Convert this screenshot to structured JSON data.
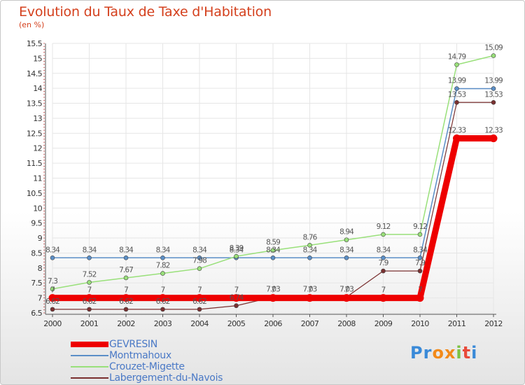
{
  "page": {
    "title": "Evolution du Taux de Taxe d'Habitation",
    "subtitle": "(en %)"
  },
  "chart_data": {
    "type": "line",
    "title": "Evolution du Taux de Taxe d'Habitation",
    "subtitle": "(en %)",
    "xlabel": "",
    "ylabel": "",
    "categories": [
      "2000",
      "2001",
      "2002",
      "2003",
      "2004",
      "2005",
      "2006",
      "2007",
      "2008",
      "2009",
      "2010",
      "2011",
      "2012"
    ],
    "ylim": [
      6.5,
      15.5
    ],
    "yticks": [
      "6.5",
      "7",
      "7.5",
      "8",
      "8.5",
      "9",
      "9.5",
      "10",
      "10.5",
      "11",
      "11.5",
      "12",
      "12.5",
      "13",
      "13.5",
      "14",
      "14.5",
      "15",
      "15.5"
    ],
    "grid": true,
    "legend_position": "bottom-left",
    "series": [
      {
        "name": "GEVRESIN",
        "color": "#ee0000",
        "values": [
          7,
          7,
          7,
          7,
          7,
          7,
          7,
          7,
          7,
          7,
          7,
          12.33,
          12.33
        ],
        "labels": [
          "7",
          "7",
          "7",
          "7",
          "7",
          "7",
          "7",
          "7",
          "7",
          "7",
          "7",
          "12.33",
          "12.33"
        ]
      },
      {
        "name": "Montmahoux",
        "color": "#5b8fc7",
        "values": [
          8.34,
          8.34,
          8.34,
          8.34,
          8.34,
          8.34,
          8.34,
          8.34,
          8.34,
          8.34,
          8.34,
          13.99,
          13.99
        ],
        "labels": [
          "8.34",
          "8.34",
          "8.34",
          "8.34",
          "8.34",
          "8.34",
          "8.34",
          "8.34",
          "8.34",
          "8.34",
          "8.34",
          "13.99",
          "13.99"
        ]
      },
      {
        "name": "Crouzet-Migette",
        "color": "#99e07a",
        "values": [
          7.3,
          7.52,
          7.67,
          7.82,
          7.98,
          8.39,
          8.59,
          8.76,
          8.94,
          9.12,
          9.12,
          14.79,
          15.09
        ],
        "labels": [
          "7.3",
          "7.52",
          "7.67",
          "7.82",
          "7.98",
          "8.39",
          "8.59",
          "8.76",
          "8.94",
          "9.12",
          "9.12",
          "14.79",
          "15.09"
        ]
      },
      {
        "name": "Labergement-du-Navois",
        "color": "#7a3030",
        "values": [
          6.62,
          6.62,
          6.62,
          6.62,
          6.62,
          6.74,
          7.03,
          7.03,
          7.03,
          7.9,
          7.9,
          13.53,
          13.53
        ],
        "labels": [
          "6.62",
          "6.62",
          "6.62",
          "6.62",
          "6.62",
          "6.74",
          "7.03",
          "7.03",
          "7.03",
          "7.9",
          "7.9",
          "13.53",
          "13.53"
        ]
      }
    ]
  },
  "logo": {
    "text": "Proxiti",
    "letters": [
      "P",
      "r",
      "o",
      "x",
      "i",
      "t",
      "i"
    ],
    "colors": [
      "#3a8ad8",
      "#3a8ad8",
      "#f28a1a",
      "#f28a1a",
      "#7cc242",
      "#e84a3a",
      "#3a8ad8"
    ]
  }
}
